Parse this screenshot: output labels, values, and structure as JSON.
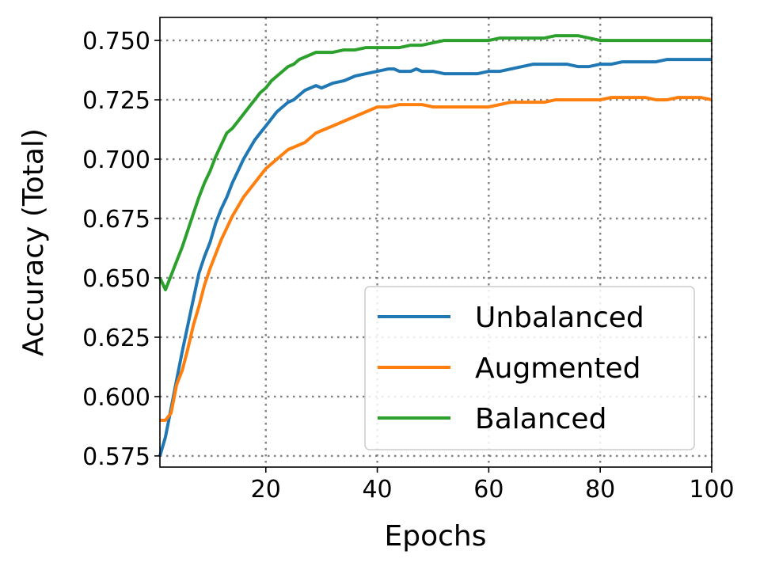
{
  "chart_data": {
    "type": "line",
    "xlabel": "Epochs",
    "ylabel": "Accuracy (Total)",
    "xlim": [
      1,
      100
    ],
    "ylim": [
      0.5703,
      0.7597
    ],
    "xticks": [
      20,
      40,
      60,
      80,
      100
    ],
    "xtick_labels": [
      "20",
      "40",
      "60",
      "80",
      "100"
    ],
    "yticks": [
      0.575,
      0.6,
      0.625,
      0.65,
      0.675,
      0.7,
      0.725,
      0.75
    ],
    "ytick_labels": [
      "0.575",
      "0.600",
      "0.625",
      "0.650",
      "0.675",
      "0.700",
      "0.725",
      "0.750"
    ],
    "grid": true,
    "legend_position": "lower-right",
    "series": [
      {
        "name": "Unbalanced",
        "color": "#1f77b4",
        "x": [
          1,
          2,
          3,
          4,
          5,
          6,
          7,
          8,
          9,
          10,
          11,
          12,
          13,
          14,
          15,
          16,
          17,
          18,
          19,
          20,
          21,
          22,
          23,
          24,
          25,
          26,
          27,
          28,
          29,
          30,
          32,
          34,
          36,
          38,
          40,
          42,
          43,
          44,
          46,
          47,
          48,
          50,
          52,
          55,
          58,
          60,
          62,
          64,
          66,
          68,
          69,
          70,
          72,
          74,
          76,
          78,
          80,
          82,
          84,
          86,
          88,
          90,
          92,
          94,
          96,
          98,
          100
        ],
        "y": [
          0.575,
          0.583,
          0.595,
          0.607,
          0.619,
          0.63,
          0.641,
          0.652,
          0.659,
          0.665,
          0.673,
          0.679,
          0.684,
          0.69,
          0.695,
          0.7,
          0.704,
          0.708,
          0.711,
          0.714,
          0.717,
          0.72,
          0.722,
          0.724,
          0.725,
          0.727,
          0.729,
          0.73,
          0.731,
          0.73,
          0.732,
          0.733,
          0.735,
          0.736,
          0.737,
          0.738,
          0.738,
          0.737,
          0.737,
          0.738,
          0.737,
          0.737,
          0.736,
          0.736,
          0.736,
          0.737,
          0.737,
          0.738,
          0.739,
          0.74,
          0.74,
          0.74,
          0.74,
          0.74,
          0.739,
          0.739,
          0.74,
          0.74,
          0.741,
          0.741,
          0.741,
          0.741,
          0.742,
          0.742,
          0.742,
          0.742,
          0.742
        ]
      },
      {
        "name": "Augmented",
        "color": "#ff7f0e",
        "x": [
          1,
          2,
          3,
          4,
          5,
          6,
          7,
          8,
          9,
          10,
          11,
          12,
          13,
          14,
          15,
          16,
          17,
          18,
          19,
          20,
          21,
          22,
          23,
          24,
          25,
          26,
          27,
          28,
          29,
          30,
          32,
          34,
          36,
          38,
          40,
          42,
          44,
          46,
          48,
          50,
          52,
          55,
          58,
          60,
          62,
          64,
          66,
          68,
          70,
          72,
          74,
          76,
          78,
          80,
          82,
          84,
          86,
          88,
          90,
          92,
          94,
          96,
          98,
          100
        ],
        "y": [
          0.59,
          0.59,
          0.593,
          0.605,
          0.611,
          0.62,
          0.63,
          0.638,
          0.647,
          0.654,
          0.66,
          0.666,
          0.671,
          0.676,
          0.68,
          0.684,
          0.687,
          0.69,
          0.693,
          0.696,
          0.698,
          0.7,
          0.702,
          0.704,
          0.705,
          0.706,
          0.707,
          0.709,
          0.711,
          0.712,
          0.714,
          0.716,
          0.718,
          0.72,
          0.722,
          0.722,
          0.723,
          0.723,
          0.723,
          0.722,
          0.722,
          0.722,
          0.722,
          0.722,
          0.723,
          0.724,
          0.724,
          0.724,
          0.724,
          0.725,
          0.725,
          0.725,
          0.725,
          0.725,
          0.726,
          0.726,
          0.726,
          0.726,
          0.725,
          0.725,
          0.726,
          0.726,
          0.726,
          0.725
        ]
      },
      {
        "name": "Balanced",
        "color": "#2ca02c",
        "x": [
          1,
          2,
          3,
          4,
          5,
          6,
          7,
          8,
          9,
          10,
          11,
          12,
          13,
          14,
          15,
          16,
          17,
          18,
          19,
          20,
          21,
          22,
          23,
          24,
          25,
          26,
          27,
          28,
          29,
          30,
          32,
          34,
          36,
          38,
          40,
          42,
          44,
          46,
          48,
          50,
          52,
          55,
          58,
          60,
          62,
          64,
          66,
          68,
          70,
          72,
          74,
          76,
          78,
          80,
          82,
          84,
          86,
          88,
          90,
          92,
          94,
          96,
          98,
          100
        ],
        "y": [
          0.65,
          0.645,
          0.651,
          0.657,
          0.663,
          0.67,
          0.677,
          0.684,
          0.69,
          0.695,
          0.701,
          0.706,
          0.711,
          0.713,
          0.716,
          0.719,
          0.722,
          0.725,
          0.728,
          0.73,
          0.733,
          0.735,
          0.737,
          0.739,
          0.74,
          0.742,
          0.743,
          0.744,
          0.745,
          0.745,
          0.745,
          0.746,
          0.746,
          0.747,
          0.747,
          0.747,
          0.747,
          0.748,
          0.748,
          0.749,
          0.75,
          0.75,
          0.75,
          0.75,
          0.751,
          0.751,
          0.751,
          0.751,
          0.751,
          0.752,
          0.752,
          0.752,
          0.751,
          0.75,
          0.75,
          0.75,
          0.75,
          0.75,
          0.75,
          0.75,
          0.75,
          0.75,
          0.75,
          0.75
        ]
      }
    ]
  }
}
